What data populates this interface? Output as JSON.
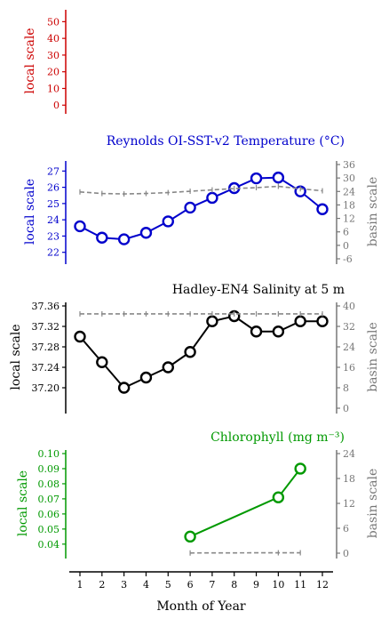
{
  "colors": {
    "panel_empty": "#cc0000",
    "panel_temp": "#0000cc",
    "panel_sal": "#000000",
    "panel_chl": "#009900",
    "basin": "#888888",
    "axis_dark": "#000000",
    "axis_right": "#777777"
  },
  "chart_data": [
    {
      "type": "line",
      "title": "",
      "ylabel": "local scale",
      "ylim": [
        -2,
        55
      ],
      "yticks": [
        "50",
        "40",
        "30",
        "20",
        "10",
        "0"
      ],
      "series": []
    },
    {
      "type": "line",
      "title": "Reynolds OI-SST-v2 Temperature (°C)",
      "ylabel": "local scale",
      "ylabel_right": "basin scale",
      "ylim": [
        21.6,
        27.4
      ],
      "ylim_right": [
        -6,
        36
      ],
      "yticks": [
        "27",
        "26",
        "25",
        "24",
        "23",
        "22"
      ],
      "yticks_right": [
        "36",
        "30",
        "24",
        "18",
        "12",
        "6",
        "0",
        "-6"
      ],
      "x": [
        1,
        2,
        3,
        4,
        5,
        6,
        7,
        8,
        9,
        10,
        11,
        12
      ],
      "series": [
        {
          "axis": "left",
          "values": [
            23.6,
            22.9,
            22.8,
            23.2,
            23.9,
            24.75,
            25.35,
            25.95,
            26.55,
            26.6,
            25.75,
            24.65
          ]
        },
        {
          "axis": "right",
          "values": [
            23.8,
            23.1,
            22.9,
            23.1,
            23.5,
            24.1,
            24.7,
            25.3,
            25.7,
            26.3,
            25.2,
            24.3
          ]
        }
      ]
    },
    {
      "type": "line",
      "title": "Hadley-EN4 Salinity at 5 m",
      "ylabel": "local scale",
      "ylabel_right": "basin scale",
      "ylim": [
        37.16,
        37.36
      ],
      "ylim_right": [
        0,
        40
      ],
      "yticks": [
        "37.36",
        "37.32",
        "37.28",
        "37.24",
        "37.20"
      ],
      "yticks_right": [
        "40",
        "32",
        "24",
        "16",
        "8",
        "0"
      ],
      "x": [
        1,
        2,
        3,
        4,
        5,
        6,
        7,
        8,
        9,
        10,
        11,
        12
      ],
      "series": [
        {
          "axis": "left",
          "values": [
            37.3,
            37.25,
            37.2,
            37.22,
            37.24,
            37.27,
            37.33,
            37.34,
            37.31,
            37.31,
            37.33,
            37.33
          ]
        },
        {
          "axis": "right",
          "values": [
            36.9,
            36.9,
            36.9,
            36.9,
            36.9,
            36.9,
            36.9,
            36.9,
            36.9,
            36.9,
            36.9,
            36.9
          ]
        }
      ]
    },
    {
      "type": "line",
      "title": "Chlorophyll (mg m⁻³)",
      "ylabel": "local scale",
      "ylabel_right": "basin scale",
      "ylim": [
        0.034,
        0.1
      ],
      "ylim_right": [
        0,
        24
      ],
      "yticks": [
        "0.10",
        "0.09",
        "0.08",
        "0.07",
        "0.06",
        "0.05",
        "0.04"
      ],
      "yticks_right": [
        "24",
        "18",
        "12",
        "6",
        "0"
      ],
      "x": [
        6,
        10,
        11
      ],
      "series": [
        {
          "axis": "left",
          "values": [
            0.045,
            0.071,
            0.09
          ]
        },
        {
          "axis": "right",
          "x": [
            6,
            10,
            11
          ],
          "values": [
            0.05,
            0.1,
            0.1
          ]
        }
      ]
    }
  ],
  "x_axis": {
    "title": "Month of Year",
    "ticks": [
      "1",
      "2",
      "3",
      "4",
      "5",
      "6",
      "7",
      "8",
      "9",
      "10",
      "11",
      "12"
    ]
  }
}
